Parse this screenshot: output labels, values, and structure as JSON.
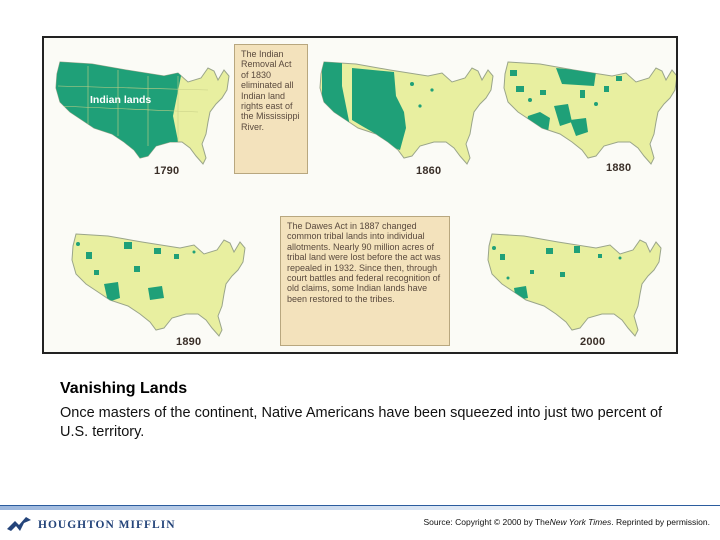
{
  "figure": {
    "land_label": "Indian lands",
    "map_years": [
      "1790",
      "1860",
      "1880",
      "1890",
      "2000"
    ],
    "colors": {
      "indian_land": "#1fa078",
      "other_land": "#e8efa0",
      "callout_bg": "#f3e2bc",
      "border": "#9aa58a"
    },
    "callout_1830": "The Indian Removal Act of 1830 eliminated all Indian land rights east of the Mississippi River.",
    "callout_1887": "The Dawes Act in 1887 changed common tribal lands into individual allotments. Nearly 90 million acres of tribal land were lost before the act was repealed in 1932. Since then, through court battles and federal recognition of old claims, some Indian lands have been restored to the tribes."
  },
  "caption": {
    "title": "Vanishing Lands",
    "body": "Once masters of the continent, Native Americans have been squeezed into just two percent of U.S. territory."
  },
  "footer": {
    "publisher": "HOUGHTON MIFFLIN",
    "logo_icon": "bird-icon",
    "source_prefix": "Source: Copyright © 2000 by The",
    "source_pub": "New York Times",
    "source_suffix": ". Reprinted by permission."
  }
}
